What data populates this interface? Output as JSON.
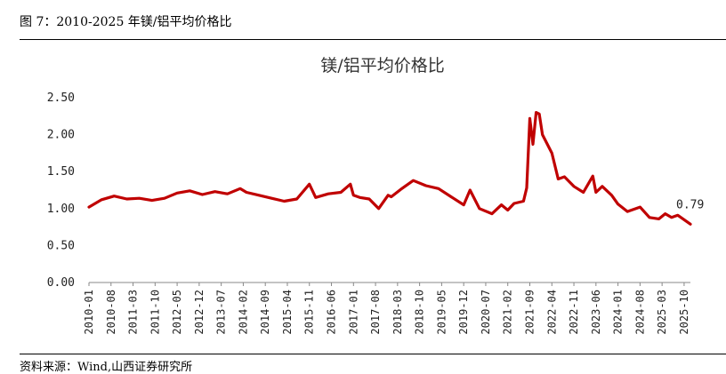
{
  "figure": {
    "caption": "图 7：2010-2025 年镁/铝平均价格比",
    "source": "资料来源：Wind,山西证券研究所"
  },
  "chart_data": {
    "type": "line",
    "title": "镁/铝平均价格比",
    "xlabel": "",
    "ylabel": "",
    "ylim": [
      0,
      2.5
    ],
    "yticks": [
      "0.00",
      "0.50",
      "1.00",
      "1.50",
      "2.00",
      "2.50"
    ],
    "xticks": [
      "2010-01",
      "2010-08",
      "2011-03",
      "2011-10",
      "2012-05",
      "2012-12",
      "2013-07",
      "2014-02",
      "2014-09",
      "2015-04",
      "2015-11",
      "2016-06",
      "2017-01",
      "2017-08",
      "2018-03",
      "2018-10",
      "2019-05",
      "2019-12",
      "2020-07",
      "2021-02",
      "2021-09",
      "2022-04",
      "2022-11",
      "2023-06",
      "2024-01",
      "2024-08",
      "2025-03",
      "2025-10"
    ],
    "line_color": "#c00000",
    "grid": false,
    "annotation": {
      "text": "0.79",
      "x": "2025-12",
      "y": 0.79
    },
    "series": [
      {
        "x": [
          "2010-01",
          "2010-05",
          "2010-09",
          "2011-01",
          "2011-05",
          "2011-09",
          "2012-01",
          "2012-05",
          "2012-09",
          "2013-01",
          "2013-05",
          "2013-09",
          "2014-01",
          "2014-03",
          "2014-07",
          "2014-11",
          "2015-03",
          "2015-07",
          "2015-11",
          "2016-01",
          "2016-05",
          "2016-09",
          "2016-12",
          "2017-01",
          "2017-03",
          "2017-06",
          "2017-09",
          "2017-12",
          "2018-01",
          "2018-04",
          "2018-08",
          "2018-12",
          "2019-04",
          "2019-08",
          "2019-12",
          "2020-02",
          "2020-05",
          "2020-09",
          "2020-12",
          "2021-02",
          "2021-04",
          "2021-07",
          "2021-08",
          "2021-09",
          "2021-10",
          "2021-11",
          "2021-12",
          "2022-01",
          "2022-04",
          "2022-06",
          "2022-08",
          "2022-11",
          "2023-02",
          "2023-05",
          "2023-06",
          "2023-08",
          "2023-11",
          "2024-01",
          "2024-04",
          "2024-08",
          "2024-11",
          "2025-02",
          "2025-04",
          "2025-06",
          "2025-08",
          "2025-10",
          "2025-12"
        ],
        "values": [
          1.02,
          1.12,
          1.17,
          1.13,
          1.14,
          1.11,
          1.14,
          1.21,
          1.24,
          1.19,
          1.23,
          1.2,
          1.27,
          1.22,
          1.18,
          1.14,
          1.1,
          1.13,
          1.33,
          1.15,
          1.2,
          1.22,
          1.33,
          1.18,
          1.15,
          1.13,
          1.0,
          1.18,
          1.16,
          1.26,
          1.38,
          1.31,
          1.27,
          1.16,
          1.05,
          1.25,
          1.0,
          0.93,
          1.05,
          0.98,
          1.07,
          1.1,
          1.28,
          2.22,
          1.87,
          2.3,
          2.28,
          2.0,
          1.75,
          1.4,
          1.43,
          1.3,
          1.22,
          1.44,
          1.22,
          1.3,
          1.18,
          1.06,
          0.96,
          1.02,
          0.88,
          0.86,
          0.93,
          0.88,
          0.91,
          0.85,
          0.79
        ]
      }
    ]
  }
}
